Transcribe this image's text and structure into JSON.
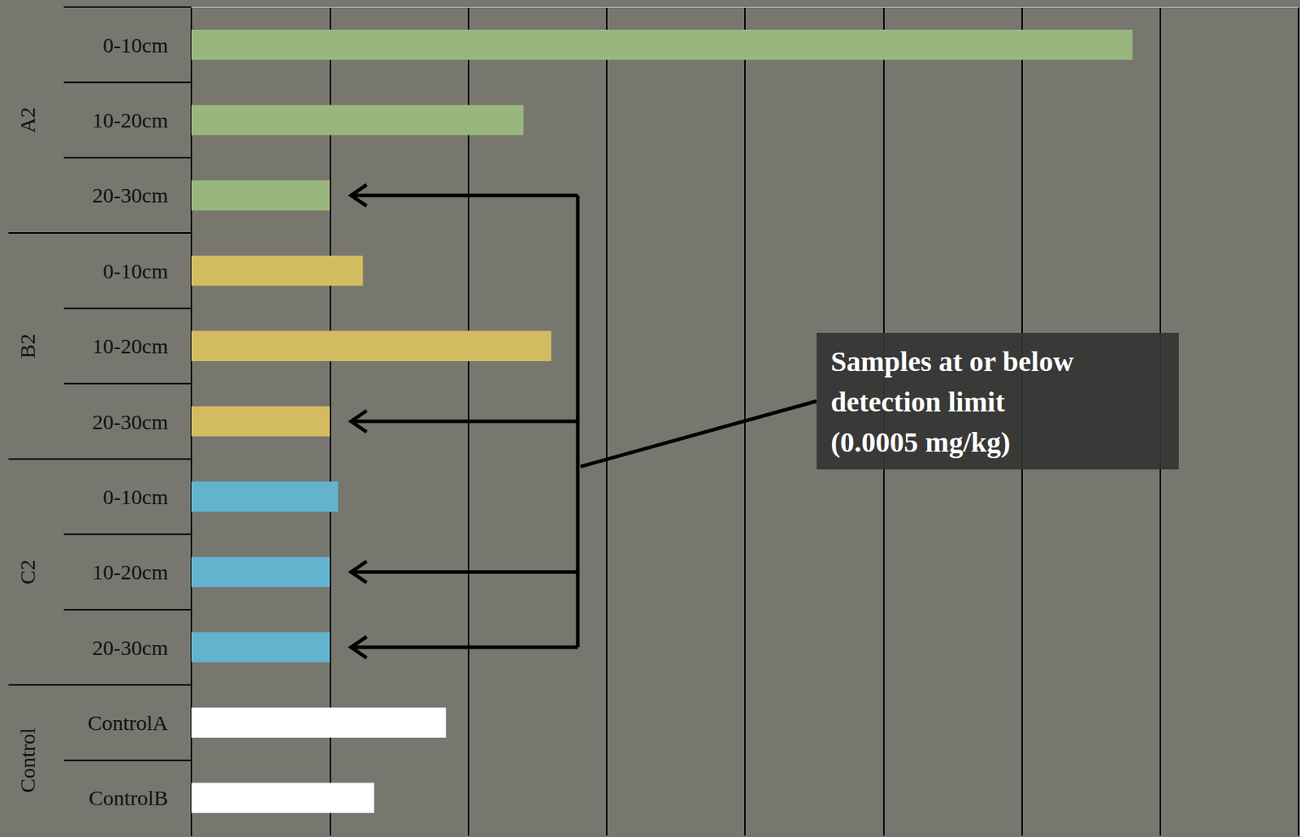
{
  "chart_data": {
    "type": "bar",
    "orientation": "horizontal",
    "categories": [
      "0-10cm",
      "10-20cm",
      "20-30cm",
      "0-10cm",
      "10-20cm",
      "20-30cm",
      "0-10cm",
      "10-20cm",
      "20-30cm",
      "ControlA",
      "ControlB"
    ],
    "values": [
      0.0034,
      0.0012,
      0.0005,
      0.00062,
      0.0013,
      0.0005,
      0.00053,
      0.0005,
      0.0005,
      0.00092,
      0.00066
    ],
    "colors": [
      "#9ab67f",
      "#9ab67f",
      "#9ab67f",
      "#d3bb5f",
      "#d3bb5f",
      "#d3bb5f",
      "#63b3cf",
      "#63b3cf",
      "#63b3cf",
      "#ffffff",
      "#ffffff"
    ],
    "groups": [
      {
        "name": "A2",
        "categories": [
          "0-10cm",
          "10-20cm",
          "20-30cm"
        ]
      },
      {
        "name": "B2",
        "categories": [
          "0-10cm",
          "10-20cm",
          "20-30cm"
        ]
      },
      {
        "name": "C2",
        "categories": [
          "0-10cm",
          "10-20cm",
          "20-30cm"
        ]
      },
      {
        "name": "Control",
        "categories": [
          "ControlA",
          "ControlB"
        ]
      }
    ],
    "xlim": [
      0,
      0.004
    ],
    "xticks": [
      0,
      0.0005,
      0.001,
      0.0015,
      0.002,
      0.0025,
      0.003,
      0.0035,
      0.004
    ],
    "grid": true,
    "tick_labels": "y",
    "annotation": {
      "text": [
        "Samples at or below",
        "detection limit",
        "(0.0005 mg/kg)"
      ],
      "detection_limit": 0.0005
    }
  }
}
